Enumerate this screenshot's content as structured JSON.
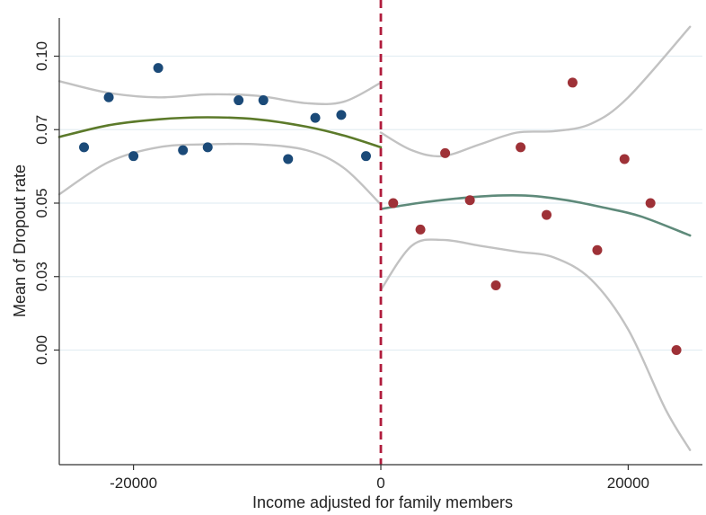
{
  "chart_data": {
    "type": "scatter",
    "title": "",
    "xlabel": "Income adjusted for family members",
    "ylabel": "Mean of Dropout rate",
    "x_ticks": [
      {
        "value": -20000,
        "label": "-20000"
      },
      {
        "value": 0,
        "label": "0"
      },
      {
        "value": 20000,
        "label": "20000"
      }
    ],
    "y_ticks": [
      {
        "value": 0.0,
        "label": "0.00"
      },
      {
        "value": 0.025,
        "label": "0.03"
      },
      {
        "value": 0.05,
        "label": "0.05"
      },
      {
        "value": 0.075,
        "label": "0.07"
      },
      {
        "value": 0.1,
        "label": "0.10"
      }
    ],
    "xlim": [
      -26000,
      26000
    ],
    "ylim": [
      -0.039,
      0.113
    ],
    "grid": "horizontal",
    "cutoff": {
      "x": 0,
      "color": "#b01c3c",
      "style": "dashed"
    },
    "series": [
      {
        "color": "#1b4a78",
        "points": [
          {
            "x": -24000,
            "y": 0.069
          },
          {
            "x": -22000,
            "y": 0.086
          },
          {
            "x": -18000,
            "y": 0.096
          },
          {
            "x": -20000,
            "y": 0.066
          },
          {
            "x": -16000,
            "y": 0.068
          },
          {
            "x": -14000,
            "y": 0.069
          },
          {
            "x": -11500,
            "y": 0.085
          },
          {
            "x": -9500,
            "y": 0.085
          },
          {
            "x": -7500,
            "y": 0.065
          },
          {
            "x": -5300,
            "y": 0.079
          },
          {
            "x": -3200,
            "y": 0.08
          },
          {
            "x": -1200,
            "y": 0.066
          }
        ]
      },
      {
        "color": "#9e3137",
        "points": [
          {
            "x": 1000,
            "y": 0.05
          },
          {
            "x": 3200,
            "y": 0.041
          },
          {
            "x": 5200,
            "y": 0.067
          },
          {
            "x": 7200,
            "y": 0.051
          },
          {
            "x": 9300,
            "y": 0.022
          },
          {
            "x": 11300,
            "y": 0.069
          },
          {
            "x": 13400,
            "y": 0.046
          },
          {
            "x": 15500,
            "y": 0.091
          },
          {
            "x": 17500,
            "y": 0.034
          },
          {
            "x": 19700,
            "y": 0.065
          },
          {
            "x": 21800,
            "y": 0.05
          },
          {
            "x": 23900,
            "y": 0.0
          }
        ]
      }
    ],
    "fits": [
      {
        "role": "fit",
        "color": "#5c7a2a",
        "points": [
          [
            -26000,
            0.0725
          ],
          [
            -22000,
            0.0765
          ],
          [
            -18000,
            0.0785
          ],
          [
            -14000,
            0.0792
          ],
          [
            -10000,
            0.0785
          ],
          [
            -6000,
            0.076
          ],
          [
            -3000,
            0.073
          ],
          [
            0,
            0.069
          ]
        ]
      },
      {
        "role": "ci-upper",
        "color": "#c2c2c2",
        "points": [
          [
            -26000,
            0.0915
          ],
          [
            -22000,
            0.0875
          ],
          [
            -18000,
            0.086
          ],
          [
            -14000,
            0.087
          ],
          [
            -10000,
            0.0865
          ],
          [
            -6000,
            0.084
          ],
          [
            -3000,
            0.0845
          ],
          [
            0,
            0.091
          ]
        ]
      },
      {
        "role": "ci-lower",
        "color": "#c2c2c2",
        "points": [
          [
            -26000,
            0.053
          ],
          [
            -22000,
            0.064
          ],
          [
            -18000,
            0.069
          ],
          [
            -14000,
            0.07
          ],
          [
            -10000,
            0.07
          ],
          [
            -6000,
            0.068
          ],
          [
            -3000,
            0.062
          ],
          [
            0,
            0.0495
          ]
        ]
      },
      {
        "role": "fit",
        "color": "#5e8a7a",
        "points": [
          [
            0,
            0.048
          ],
          [
            3000,
            0.05
          ],
          [
            6000,
            0.0515
          ],
          [
            9000,
            0.0525
          ],
          [
            12000,
            0.0525
          ],
          [
            15000,
            0.051
          ],
          [
            18000,
            0.0485
          ],
          [
            21000,
            0.0455
          ],
          [
            25000,
            0.039
          ]
        ]
      },
      {
        "role": "ci-upper",
        "color": "#c2c2c2",
        "points": [
          [
            0,
            0.074
          ],
          [
            2500,
            0.068
          ],
          [
            5000,
            0.066
          ],
          [
            8000,
            0.07
          ],
          [
            11000,
            0.074
          ],
          [
            14000,
            0.0745
          ],
          [
            17000,
            0.077
          ],
          [
            20000,
            0.086
          ],
          [
            25000,
            0.11
          ]
        ]
      },
      {
        "role": "ci-lower",
        "color": "#c2c2c2",
        "points": [
          [
            0,
            0.0205
          ],
          [
            2500,
            0.0355
          ],
          [
            5000,
            0.0375
          ],
          [
            8000,
            0.0355
          ],
          [
            11000,
            0.0335
          ],
          [
            14000,
            0.0315
          ],
          [
            17000,
            0.024
          ],
          [
            20000,
            0.007
          ],
          [
            23000,
            -0.02
          ],
          [
            25000,
            -0.034
          ]
        ]
      }
    ]
  }
}
